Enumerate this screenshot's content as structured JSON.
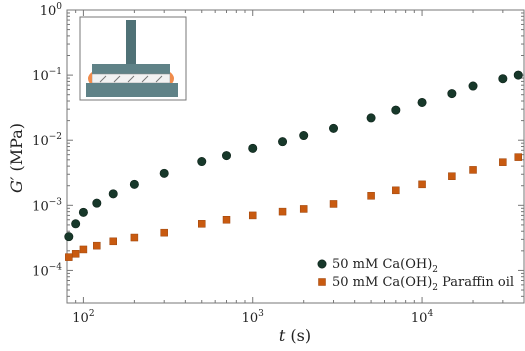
{
  "chart_data": {
    "type": "scatter",
    "x_scale": "log",
    "y_scale": "log",
    "xlim": [
      80,
      40000
    ],
    "ylim": [
      3.16e-05,
      1
    ],
    "xlabel": {
      "var": "t",
      "unit": " (s)"
    },
    "ylabel": {
      "var": "G′",
      "unit": " (MPa)"
    },
    "x_ticks": [
      {
        "value": 100,
        "base": "10",
        "exp": "2"
      },
      {
        "value": 1000,
        "base": "10",
        "exp": "3"
      },
      {
        "value": 10000,
        "base": "10",
        "exp": "4"
      }
    ],
    "y_ticks": [
      {
        "value": 1,
        "base": "10",
        "exp": "0"
      },
      {
        "value": 0.1,
        "base": "10",
        "exp": "−1"
      },
      {
        "value": 0.01,
        "base": "10",
        "exp": "−2"
      },
      {
        "value": 0.001,
        "base": "10",
        "exp": "−3"
      },
      {
        "value": 0.0001,
        "base": "10",
        "exp": "−4"
      }
    ],
    "legend_position": "bottom-right",
    "series": [
      {
        "name": "50 mM Ca(OH)",
        "name_subscript": "2",
        "marker": "circle",
        "color": "#17382a",
        "points": [
          [
            82,
            0.00033
          ],
          [
            90,
            0.00052
          ],
          [
            100,
            0.00078
          ],
          [
            120,
            0.00108
          ],
          [
            150,
            0.0015
          ],
          [
            200,
            0.0021
          ],
          [
            300,
            0.0031
          ],
          [
            500,
            0.0047
          ],
          [
            700,
            0.0058
          ],
          [
            1000,
            0.0075
          ],
          [
            1500,
            0.0095
          ],
          [
            2000,
            0.0118
          ],
          [
            3000,
            0.0152
          ],
          [
            5000,
            0.022
          ],
          [
            7000,
            0.029
          ],
          [
            10000,
            0.038
          ],
          [
            15000,
            0.052
          ],
          [
            20000,
            0.068
          ],
          [
            30000,
            0.088
          ],
          [
            37000,
            0.1
          ]
        ]
      },
      {
        "name": "50 mM Ca(OH)",
        "name_subscript": "2",
        "name_suffix": " Paraffin oil",
        "marker": "square",
        "color": "#c85a10",
        "points": [
          [
            82,
            0.00016
          ],
          [
            90,
            0.00018
          ],
          [
            100,
            0.00021
          ],
          [
            120,
            0.00024
          ],
          [
            150,
            0.00028
          ],
          [
            200,
            0.00032
          ],
          [
            300,
            0.00038
          ],
          [
            500,
            0.00052
          ],
          [
            700,
            0.0006
          ],
          [
            1000,
            0.0007
          ],
          [
            1500,
            0.0008
          ],
          [
            2000,
            0.00088
          ],
          [
            3000,
            0.00105
          ],
          [
            5000,
            0.0014
          ],
          [
            7000,
            0.0017
          ],
          [
            10000,
            0.0021
          ],
          [
            15000,
            0.0028
          ],
          [
            20000,
            0.0035
          ],
          [
            30000,
            0.0046
          ],
          [
            37000,
            0.0055
          ]
        ]
      }
    ]
  }
}
